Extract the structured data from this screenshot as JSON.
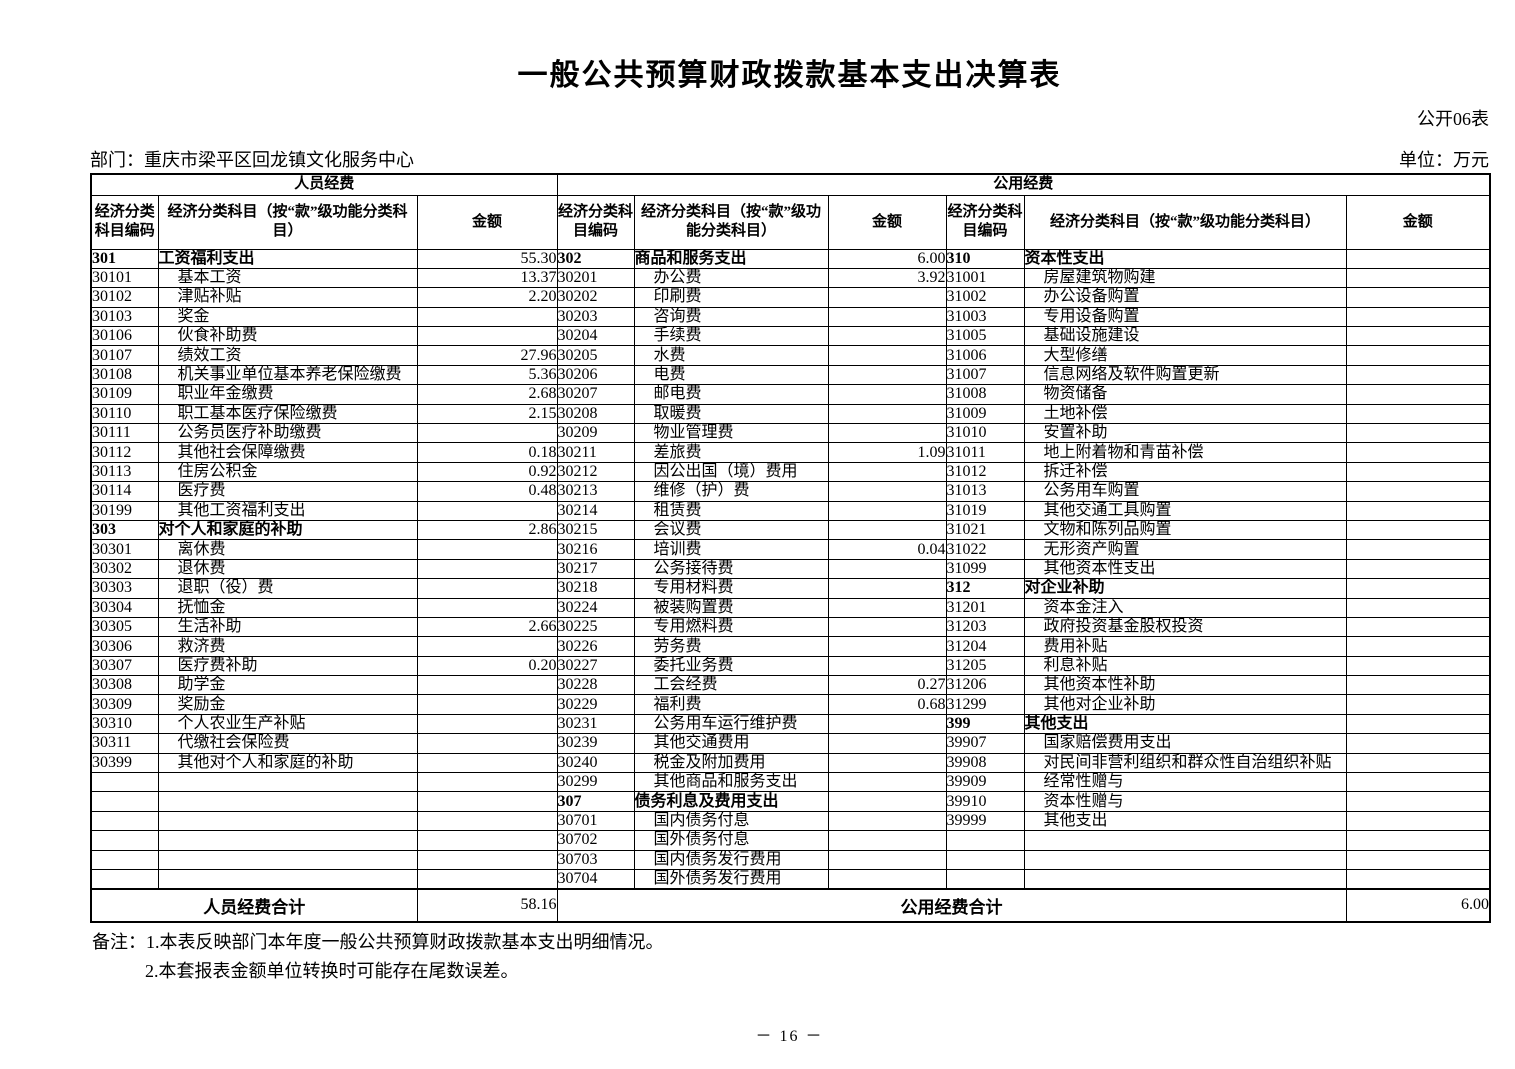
{
  "page": {
    "title": "一般公共预算财政拨款基本支出决算表",
    "form_code": "公开06表",
    "department": "部门：重庆市梁平区回龙镇文化服务中心",
    "unit": "单位：万元",
    "page_number": "－ 16 －"
  },
  "table": {
    "group_headers": {
      "personnel": "人员经费",
      "public": "公用经费"
    },
    "column_headers": {
      "code": "经济分类科目编码",
      "subject": "经济分类科目（按“款”级功能分类科目）",
      "amount": "金额"
    },
    "rows": [
      [
        {
          "code": "301",
          "name": "工资福利支出",
          "amt": "55.30"
        },
        {
          "code": "302",
          "name": "商品和服务支出",
          "amt": "6.00"
        },
        {
          "code": "310",
          "name": "资本性支出",
          "amt": ""
        }
      ],
      [
        {
          "code": "30101",
          "name": "基本工资",
          "amt": "13.37"
        },
        {
          "code": "30201",
          "name": "办公费",
          "amt": "3.92"
        },
        {
          "code": "31001",
          "name": "房屋建筑物购建",
          "amt": ""
        }
      ],
      [
        {
          "code": "30102",
          "name": "津贴补贴",
          "amt": "2.20"
        },
        {
          "code": "30202",
          "name": "印刷费",
          "amt": ""
        },
        {
          "code": "31002",
          "name": "办公设备购置",
          "amt": ""
        }
      ],
      [
        {
          "code": "30103",
          "name": "奖金",
          "amt": ""
        },
        {
          "code": "30203",
          "name": "咨询费",
          "amt": ""
        },
        {
          "code": "31003",
          "name": "专用设备购置",
          "amt": ""
        }
      ],
      [
        {
          "code": "30106",
          "name": "伙食补助费",
          "amt": ""
        },
        {
          "code": "30204",
          "name": "手续费",
          "amt": ""
        },
        {
          "code": "31005",
          "name": "基础设施建设",
          "amt": ""
        }
      ],
      [
        {
          "code": "30107",
          "name": "绩效工资",
          "amt": "27.96"
        },
        {
          "code": "30205",
          "name": "水费",
          "amt": ""
        },
        {
          "code": "31006",
          "name": "大型修缮",
          "amt": ""
        }
      ],
      [
        {
          "code": "30108",
          "name": "机关事业单位基本养老保险缴费",
          "amt": "5.36"
        },
        {
          "code": "30206",
          "name": "电费",
          "amt": ""
        },
        {
          "code": "31007",
          "name": "信息网络及软件购置更新",
          "amt": ""
        }
      ],
      [
        {
          "code": "30109",
          "name": "职业年金缴费",
          "amt": "2.68"
        },
        {
          "code": "30207",
          "name": "邮电费",
          "amt": ""
        },
        {
          "code": "31008",
          "name": "物资储备",
          "amt": ""
        }
      ],
      [
        {
          "code": "30110",
          "name": "职工基本医疗保险缴费",
          "amt": "2.15"
        },
        {
          "code": "30208",
          "name": "取暖费",
          "amt": ""
        },
        {
          "code": "31009",
          "name": "土地补偿",
          "amt": ""
        }
      ],
      [
        {
          "code": "30111",
          "name": "公务员医疗补助缴费",
          "amt": ""
        },
        {
          "code": "30209",
          "name": "物业管理费",
          "amt": ""
        },
        {
          "code": "31010",
          "name": "安置补助",
          "amt": ""
        }
      ],
      [
        {
          "code": "30112",
          "name": "其他社会保障缴费",
          "amt": "0.18"
        },
        {
          "code": "30211",
          "name": "差旅费",
          "amt": "1.09"
        },
        {
          "code": "31011",
          "name": "地上附着物和青苗补偿",
          "amt": ""
        }
      ],
      [
        {
          "code": "30113",
          "name": "住房公积金",
          "amt": "0.92"
        },
        {
          "code": "30212",
          "name": "因公出国（境）费用",
          "amt": ""
        },
        {
          "code": "31012",
          "name": "拆迁补偿",
          "amt": ""
        }
      ],
      [
        {
          "code": "30114",
          "name": "医疗费",
          "amt": "0.48"
        },
        {
          "code": "30213",
          "name": "维修（护）费",
          "amt": ""
        },
        {
          "code": "31013",
          "name": "公务用车购置",
          "amt": ""
        }
      ],
      [
        {
          "code": "30199",
          "name": "其他工资福利支出",
          "amt": ""
        },
        {
          "code": "30214",
          "name": "租赁费",
          "amt": ""
        },
        {
          "code": "31019",
          "name": "其他交通工具购置",
          "amt": ""
        }
      ],
      [
        {
          "code": "303",
          "name": "对个人和家庭的补助",
          "amt": "2.86"
        },
        {
          "code": "30215",
          "name": "会议费",
          "amt": ""
        },
        {
          "code": "31021",
          "name": "文物和陈列品购置",
          "amt": ""
        }
      ],
      [
        {
          "code": "30301",
          "name": "离休费",
          "amt": ""
        },
        {
          "code": "30216",
          "name": "培训费",
          "amt": "0.04"
        },
        {
          "code": "31022",
          "name": "无形资产购置",
          "amt": ""
        }
      ],
      [
        {
          "code": "30302",
          "name": "退休费",
          "amt": ""
        },
        {
          "code": "30217",
          "name": "公务接待费",
          "amt": ""
        },
        {
          "code": "31099",
          "name": "其他资本性支出",
          "amt": ""
        }
      ],
      [
        {
          "code": "30303",
          "name": "退职（役）费",
          "amt": ""
        },
        {
          "code": "30218",
          "name": "专用材料费",
          "amt": ""
        },
        {
          "code": "312",
          "name": "对企业补助",
          "amt": ""
        }
      ],
      [
        {
          "code": "30304",
          "name": "抚恤金",
          "amt": ""
        },
        {
          "code": "30224",
          "name": "被装购置费",
          "amt": ""
        },
        {
          "code": "31201",
          "name": "资本金注入",
          "amt": ""
        }
      ],
      [
        {
          "code": "30305",
          "name": "生活补助",
          "amt": "2.66"
        },
        {
          "code": "30225",
          "name": "专用燃料费",
          "amt": ""
        },
        {
          "code": "31203",
          "name": "政府投资基金股权投资",
          "amt": ""
        }
      ],
      [
        {
          "code": "30306",
          "name": "救济费",
          "amt": ""
        },
        {
          "code": "30226",
          "name": "劳务费",
          "amt": ""
        },
        {
          "code": "31204",
          "name": "费用补贴",
          "amt": ""
        }
      ],
      [
        {
          "code": "30307",
          "name": "医疗费补助",
          "amt": "0.20"
        },
        {
          "code": "30227",
          "name": "委托业务费",
          "amt": ""
        },
        {
          "code": "31205",
          "name": "利息补贴",
          "amt": ""
        }
      ],
      [
        {
          "code": "30308",
          "name": "助学金",
          "amt": ""
        },
        {
          "code": "30228",
          "name": "工会经费",
          "amt": "0.27"
        },
        {
          "code": "31206",
          "name": "其他资本性补助",
          "amt": ""
        }
      ],
      [
        {
          "code": "30309",
          "name": "奖励金",
          "amt": ""
        },
        {
          "code": "30229",
          "name": "福利费",
          "amt": "0.68"
        },
        {
          "code": "31299",
          "name": "其他对企业补助",
          "amt": ""
        }
      ],
      [
        {
          "code": "30310",
          "name": "个人农业生产补贴",
          "amt": ""
        },
        {
          "code": "30231",
          "name": "公务用车运行维护费",
          "amt": ""
        },
        {
          "code": "399",
          "name": "其他支出",
          "amt": ""
        }
      ],
      [
        {
          "code": "30311",
          "name": "代缴社会保险费",
          "amt": ""
        },
        {
          "code": "30239",
          "name": "其他交通费用",
          "amt": ""
        },
        {
          "code": "39907",
          "name": "国家赔偿费用支出",
          "amt": ""
        }
      ],
      [
        {
          "code": "30399",
          "name": "其他对个人和家庭的补助",
          "amt": ""
        },
        {
          "code": "30240",
          "name": "税金及附加费用",
          "amt": ""
        },
        {
          "code": "39908",
          "name": "对民间非营利组织和群众性自治组织补贴",
          "amt": ""
        }
      ],
      [
        {
          "code": "",
          "name": "",
          "amt": ""
        },
        {
          "code": "30299",
          "name": "其他商品和服务支出",
          "amt": ""
        },
        {
          "code": "39909",
          "name": "经常性赠与",
          "amt": ""
        }
      ],
      [
        {
          "code": "",
          "name": "",
          "amt": ""
        },
        {
          "code": "307",
          "name": "债务利息及费用支出",
          "amt": ""
        },
        {
          "code": "39910",
          "name": "资本性赠与",
          "amt": ""
        }
      ],
      [
        {
          "code": "",
          "name": "",
          "amt": ""
        },
        {
          "code": "30701",
          "name": "国内债务付息",
          "amt": ""
        },
        {
          "code": "39999",
          "name": "其他支出",
          "amt": ""
        }
      ],
      [
        {
          "code": "",
          "name": "",
          "amt": ""
        },
        {
          "code": "30702",
          "name": "国外债务付息",
          "amt": ""
        },
        {
          "code": "",
          "name": "",
          "amt": ""
        }
      ],
      [
        {
          "code": "",
          "name": "",
          "amt": ""
        },
        {
          "code": "30703",
          "name": "国内债务发行费用",
          "amt": ""
        },
        {
          "code": "",
          "name": "",
          "amt": ""
        }
      ],
      [
        {
          "code": "",
          "name": "",
          "amt": ""
        },
        {
          "code": "30704",
          "name": "国外债务发行费用",
          "amt": ""
        },
        {
          "code": "",
          "name": "",
          "amt": ""
        }
      ]
    ],
    "totals": {
      "personnel_label": "人员经费合计",
      "personnel_amount": "58.16",
      "public_label": "公用经费合计",
      "public_amount": "6.00"
    }
  },
  "notes": {
    "label": "备注：",
    "line1": "1.本表反映部门本年度一般公共预算财政拨款基本支出明细情况。",
    "line2": "2.本套报表金额单位转换时可能存在尾数误差。"
  }
}
